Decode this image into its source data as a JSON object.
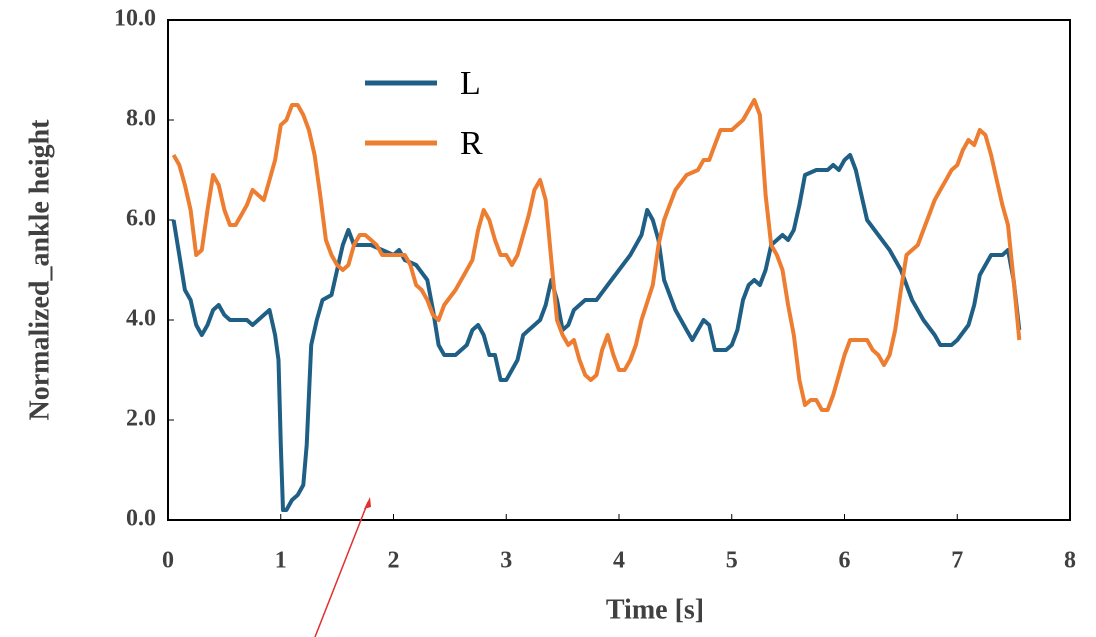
{
  "chart_data": {
    "type": "line",
    "xlabel": "Time [s]",
    "ylabel": "Normalized_ankle height",
    "xlim": [
      0,
      8
    ],
    "xticks": [
      0,
      1,
      2,
      3,
      4,
      5,
      6,
      7,
      8
    ],
    "ylim": [
      0,
      10
    ],
    "yticks": [
      {
        "value": 0,
        "label": "0.0"
      },
      {
        "value": 2,
        "label": "2.0"
      },
      {
        "value": 4,
        "label": "4.0"
      },
      {
        "value": 6,
        "label": "6.0"
      },
      {
        "value": 8,
        "label": "8.0"
      },
      {
        "value": 10,
        "label": "10.0"
      }
    ],
    "legend": "upper left",
    "grid": false,
    "series": [
      {
        "name": "L",
        "color": "#1f5f85",
        "x": [
          0.05,
          0.1,
          0.15,
          0.2,
          0.25,
          0.3,
          0.35,
          0.4,
          0.45,
          0.5,
          0.55,
          0.6,
          0.7,
          0.75,
          0.8,
          0.85,
          0.9,
          0.95,
          0.98,
          1.0,
          1.02,
          1.05,
          1.1,
          1.15,
          1.2,
          1.23,
          1.27,
          1.32,
          1.37,
          1.45,
          1.5,
          1.55,
          1.6,
          1.65,
          1.7,
          1.8,
          1.9,
          2.0,
          2.05,
          2.1,
          2.2,
          2.3,
          2.35,
          2.4,
          2.45,
          2.55,
          2.65,
          2.7,
          2.75,
          2.8,
          2.85,
          2.9,
          2.95,
          3.0,
          3.05,
          3.1,
          3.15,
          3.2,
          3.3,
          3.35,
          3.4,
          3.45,
          3.5,
          3.55,
          3.6,
          3.7,
          3.8,
          3.9,
          4.0,
          4.1,
          4.2,
          4.25,
          4.3,
          4.35,
          4.4,
          4.5,
          4.6,
          4.65,
          4.7,
          4.75,
          4.8,
          4.85,
          4.95,
          5.0,
          5.05,
          5.1,
          5.15,
          5.2,
          5.25,
          5.3,
          5.35,
          5.4,
          5.45,
          5.5,
          5.55,
          5.6,
          5.65,
          5.75,
          5.85,
          5.9,
          5.95,
          6.0,
          6.05,
          6.1,
          6.15,
          6.2,
          6.3,
          6.4,
          6.5,
          6.55,
          6.6,
          6.7,
          6.8,
          6.85,
          6.95,
          7.0,
          7.1,
          7.15,
          7.2,
          7.3,
          7.4,
          7.45,
          7.5,
          7.55
        ],
        "values": [
          6.0,
          5.3,
          4.6,
          4.4,
          3.9,
          3.7,
          3.9,
          4.2,
          4.3,
          4.1,
          4.0,
          4.0,
          4.0,
          3.9,
          4.0,
          4.1,
          4.2,
          3.7,
          3.2,
          1.5,
          0.2,
          0.2,
          0.4,
          0.5,
          0.7,
          1.5,
          3.5,
          4.0,
          4.4,
          4.5,
          5.0,
          5.5,
          5.8,
          5.5,
          5.5,
          5.5,
          5.4,
          5.3,
          5.4,
          5.2,
          5.1,
          4.8,
          4.2,
          3.5,
          3.3,
          3.3,
          3.5,
          3.8,
          3.9,
          3.7,
          3.3,
          3.3,
          2.8,
          2.8,
          3.0,
          3.2,
          3.7,
          3.8,
          4.0,
          4.3,
          4.8,
          4.4,
          3.8,
          3.9,
          4.2,
          4.4,
          4.4,
          4.7,
          5.0,
          5.3,
          5.7,
          6.2,
          6.0,
          5.6,
          4.8,
          4.2,
          3.8,
          3.6,
          3.8,
          4.0,
          3.9,
          3.4,
          3.4,
          3.5,
          3.8,
          4.4,
          4.7,
          4.8,
          4.7,
          5.0,
          5.5,
          5.6,
          5.7,
          5.6,
          5.8,
          6.3,
          6.9,
          7.0,
          7.0,
          7.1,
          7.0,
          7.2,
          7.3,
          7.0,
          6.5,
          6.0,
          5.7,
          5.4,
          5.0,
          4.7,
          4.4,
          4.0,
          3.7,
          3.5,
          3.5,
          3.6,
          3.9,
          4.3,
          4.9,
          5.3,
          5.3,
          5.4,
          4.8,
          3.8
        ]
      },
      {
        "name": "R",
        "color": "#ed7d31",
        "x": [
          0.05,
          0.1,
          0.15,
          0.2,
          0.25,
          0.3,
          0.35,
          0.4,
          0.45,
          0.5,
          0.55,
          0.6,
          0.65,
          0.7,
          0.75,
          0.8,
          0.85,
          0.9,
          0.95,
          1.0,
          1.05,
          1.1,
          1.15,
          1.2,
          1.25,
          1.3,
          1.35,
          1.4,
          1.45,
          1.5,
          1.55,
          1.6,
          1.65,
          1.7,
          1.75,
          1.8,
          1.85,
          1.9,
          2.0,
          2.1,
          2.15,
          2.2,
          2.25,
          2.3,
          2.35,
          2.4,
          2.45,
          2.55,
          2.65,
          2.7,
          2.75,
          2.8,
          2.85,
          2.9,
          2.95,
          3.0,
          3.05,
          3.1,
          3.15,
          3.2,
          3.25,
          3.3,
          3.35,
          3.4,
          3.45,
          3.5,
          3.55,
          3.6,
          3.65,
          3.7,
          3.75,
          3.8,
          3.85,
          3.9,
          3.95,
          4.0,
          4.05,
          4.1,
          4.15,
          4.2,
          4.3,
          4.35,
          4.4,
          4.45,
          4.5,
          4.6,
          4.7,
          4.75,
          4.8,
          4.85,
          4.9,
          5.0,
          5.05,
          5.1,
          5.15,
          5.2,
          5.25,
          5.3,
          5.35,
          5.4,
          5.45,
          5.5,
          5.55,
          5.6,
          5.65,
          5.7,
          5.75,
          5.8,
          5.85,
          5.9,
          5.95,
          6.0,
          6.05,
          6.1,
          6.2,
          6.25,
          6.3,
          6.35,
          6.4,
          6.45,
          6.5,
          6.55,
          6.6,
          6.65,
          6.7,
          6.75,
          6.8,
          6.85,
          6.9,
          6.95,
          7.0,
          7.05,
          7.1,
          7.15,
          7.2,
          7.25,
          7.3,
          7.35,
          7.4,
          7.45,
          7.5,
          7.55
        ],
        "values": [
          7.3,
          7.1,
          6.7,
          6.2,
          5.3,
          5.4,
          6.2,
          6.9,
          6.7,
          6.2,
          5.9,
          5.9,
          6.1,
          6.3,
          6.6,
          6.5,
          6.4,
          6.8,
          7.2,
          7.9,
          8.0,
          8.3,
          8.3,
          8.1,
          7.8,
          7.3,
          6.5,
          5.6,
          5.3,
          5.1,
          5.0,
          5.1,
          5.5,
          5.7,
          5.7,
          5.6,
          5.5,
          5.3,
          5.3,
          5.3,
          5.1,
          4.7,
          4.6,
          4.4,
          4.1,
          4.0,
          4.3,
          4.6,
          5.0,
          5.2,
          5.8,
          6.2,
          6.0,
          5.6,
          5.3,
          5.3,
          5.1,
          5.3,
          5.7,
          6.1,
          6.6,
          6.8,
          6.4,
          5.2,
          4.0,
          3.7,
          3.5,
          3.6,
          3.2,
          2.9,
          2.8,
          2.9,
          3.4,
          3.7,
          3.3,
          3.0,
          3.0,
          3.2,
          3.5,
          4.0,
          4.7,
          5.5,
          6.0,
          6.3,
          6.6,
          6.9,
          7.0,
          7.2,
          7.2,
          7.5,
          7.8,
          7.8,
          7.9,
          8.0,
          8.2,
          8.4,
          8.1,
          6.5,
          5.5,
          5.3,
          5.0,
          4.3,
          3.7,
          2.8,
          2.3,
          2.4,
          2.4,
          2.2,
          2.2,
          2.5,
          2.9,
          3.3,
          3.6,
          3.6,
          3.6,
          3.4,
          3.3,
          3.1,
          3.3,
          3.8,
          4.6,
          5.3,
          5.4,
          5.5,
          5.8,
          6.1,
          6.4,
          6.6,
          6.8,
          7.0,
          7.1,
          7.4,
          7.6,
          7.5,
          7.8,
          7.7,
          7.3,
          6.8,
          6.3,
          5.9,
          4.8,
          3.6
        ]
      }
    ]
  }
}
